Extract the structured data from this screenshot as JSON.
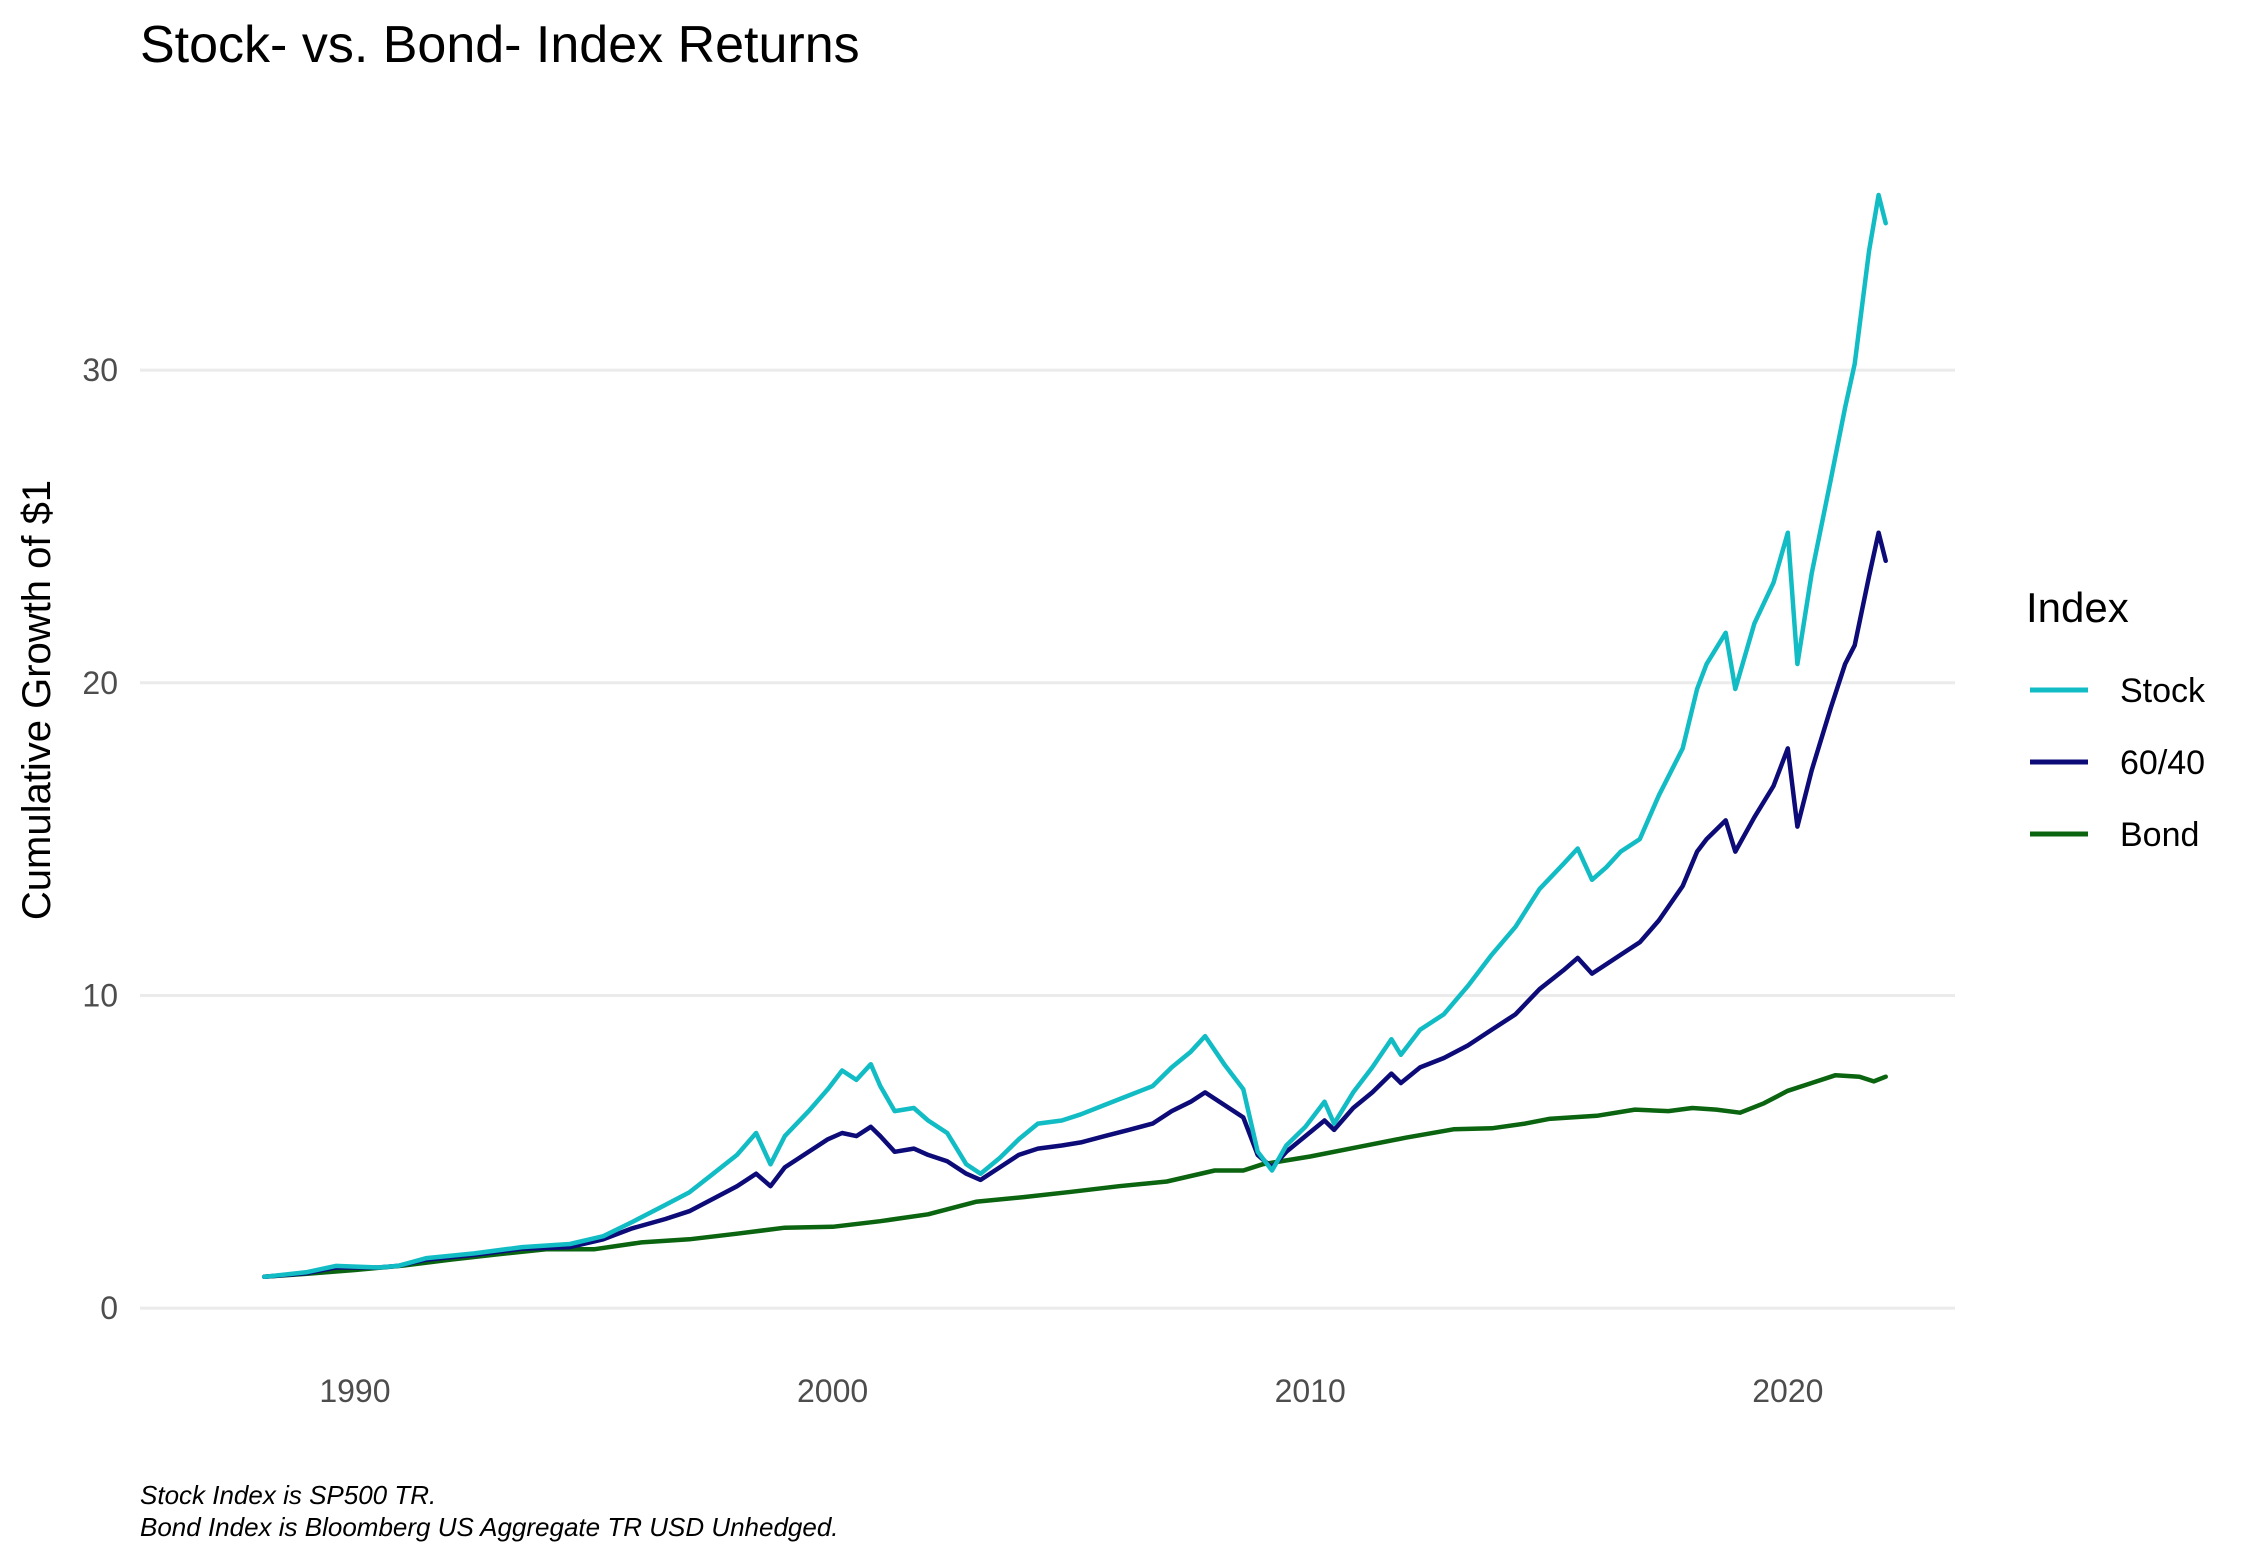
{
  "chart_data": {
    "type": "line",
    "title": "Stock- vs. Bond- Index Returns",
    "xlabel": "",
    "ylabel": "Cumulative Growth of $1",
    "xlim": [
      1985.5,
      2023.5
    ],
    "ylim": [
      -1.5,
      38
    ],
    "x_ticks": [
      1990,
      2000,
      2010,
      2020
    ],
    "x_tick_labels": [
      "1990",
      "2000",
      "2010",
      "2020"
    ],
    "y_ticks": [
      0,
      10,
      20,
      30
    ],
    "y_tick_labels": [
      "0",
      "10",
      "20",
      "30"
    ],
    "grid": "horizontal major",
    "legend": {
      "title": "Index",
      "position": "right"
    },
    "captions": [
      "Stock Index is SP500 TR.",
      "Bond Index is Bloomberg US Aggregate TR USD Unhedged."
    ],
    "series": [
      {
        "name": "Stock",
        "color": "#12bcc4",
        "points": [
          [
            1988.1,
            1.0
          ],
          [
            1989.0,
            1.15
          ],
          [
            1989.6,
            1.35
          ],
          [
            1990.5,
            1.3
          ],
          [
            1990.9,
            1.35
          ],
          [
            1991.5,
            1.6
          ],
          [
            1992.5,
            1.75
          ],
          [
            1993.5,
            1.95
          ],
          [
            1994.5,
            2.05
          ],
          [
            1995.2,
            2.3
          ],
          [
            1995.8,
            2.75
          ],
          [
            1996.5,
            3.3
          ],
          [
            1997.0,
            3.7
          ],
          [
            1997.5,
            4.3
          ],
          [
            1998.0,
            4.9
          ],
          [
            1998.4,
            5.6
          ],
          [
            1998.7,
            4.6
          ],
          [
            1999.0,
            5.5
          ],
          [
            1999.5,
            6.3
          ],
          [
            1999.9,
            7.0
          ],
          [
            2000.2,
            7.6
          ],
          [
            2000.5,
            7.3
          ],
          [
            2000.8,
            7.8
          ],
          [
            2001.0,
            7.1
          ],
          [
            2001.3,
            6.3
          ],
          [
            2001.7,
            6.4
          ],
          [
            2002.0,
            6.0
          ],
          [
            2002.4,
            5.6
          ],
          [
            2002.8,
            4.6
          ],
          [
            2003.1,
            4.3
          ],
          [
            2003.5,
            4.8
          ],
          [
            2003.9,
            5.4
          ],
          [
            2004.3,
            5.9
          ],
          [
            2004.8,
            6.0
          ],
          [
            2005.2,
            6.2
          ],
          [
            2005.7,
            6.5
          ],
          [
            2006.2,
            6.8
          ],
          [
            2006.7,
            7.1
          ],
          [
            2007.1,
            7.7
          ],
          [
            2007.5,
            8.2
          ],
          [
            2007.8,
            8.7
          ],
          [
            2008.2,
            7.8
          ],
          [
            2008.6,
            7.0
          ],
          [
            2008.9,
            5.0
          ],
          [
            2009.2,
            4.4
          ],
          [
            2009.5,
            5.2
          ],
          [
            2009.9,
            5.8
          ],
          [
            2010.3,
            6.6
          ],
          [
            2010.5,
            5.9
          ],
          [
            2010.9,
            6.9
          ],
          [
            2011.3,
            7.7
          ],
          [
            2011.7,
            8.6
          ],
          [
            2011.9,
            8.1
          ],
          [
            2012.3,
            8.9
          ],
          [
            2012.8,
            9.4
          ],
          [
            2013.3,
            10.3
          ],
          [
            2013.8,
            11.3
          ],
          [
            2014.3,
            12.2
          ],
          [
            2014.8,
            13.4
          ],
          [
            2015.3,
            14.2
          ],
          [
            2015.6,
            14.7
          ],
          [
            2015.9,
            13.7
          ],
          [
            2016.2,
            14.1
          ],
          [
            2016.5,
            14.6
          ],
          [
            2016.9,
            15.0
          ],
          [
            2017.3,
            16.4
          ],
          [
            2017.8,
            17.9
          ],
          [
            2018.1,
            19.8
          ],
          [
            2018.3,
            20.6
          ],
          [
            2018.7,
            21.6
          ],
          [
            2018.9,
            19.8
          ],
          [
            2019.3,
            21.9
          ],
          [
            2019.7,
            23.2
          ],
          [
            2020.0,
            24.8
          ],
          [
            2020.2,
            20.6
          ],
          [
            2020.5,
            23.5
          ],
          [
            2020.9,
            26.5
          ],
          [
            2021.2,
            28.8
          ],
          [
            2021.4,
            30.2
          ],
          [
            2021.7,
            33.8
          ],
          [
            2021.9,
            35.6
          ],
          [
            2022.05,
            34.7
          ]
        ]
      },
      {
        "name": "60/40",
        "color": "#0d0b78",
        "points": [
          [
            1988.1,
            1.0
          ],
          [
            1989.0,
            1.12
          ],
          [
            1989.6,
            1.3
          ],
          [
            1990.5,
            1.3
          ],
          [
            1990.9,
            1.35
          ],
          [
            1991.5,
            1.55
          ],
          [
            1992.5,
            1.7
          ],
          [
            1993.5,
            1.9
          ],
          [
            1994.5,
            1.95
          ],
          [
            1995.2,
            2.2
          ],
          [
            1995.8,
            2.55
          ],
          [
            1996.5,
            2.85
          ],
          [
            1997.0,
            3.1
          ],
          [
            1997.5,
            3.5
          ],
          [
            1998.0,
            3.9
          ],
          [
            1998.4,
            4.3
          ],
          [
            1998.7,
            3.9
          ],
          [
            1999.0,
            4.5
          ],
          [
            1999.5,
            5.0
          ],
          [
            1999.9,
            5.4
          ],
          [
            2000.2,
            5.6
          ],
          [
            2000.5,
            5.5
          ],
          [
            2000.8,
            5.8
          ],
          [
            2001.0,
            5.5
          ],
          [
            2001.3,
            5.0
          ],
          [
            2001.7,
            5.1
          ],
          [
            2002.0,
            4.9
          ],
          [
            2002.4,
            4.7
          ],
          [
            2002.8,
            4.3
          ],
          [
            2003.1,
            4.1
          ],
          [
            2003.5,
            4.5
          ],
          [
            2003.9,
            4.9
          ],
          [
            2004.3,
            5.1
          ],
          [
            2004.8,
            5.2
          ],
          [
            2005.2,
            5.3
          ],
          [
            2005.7,
            5.5
          ],
          [
            2006.2,
            5.7
          ],
          [
            2006.7,
            5.9
          ],
          [
            2007.1,
            6.3
          ],
          [
            2007.5,
            6.6
          ],
          [
            2007.8,
            6.9
          ],
          [
            2008.2,
            6.5
          ],
          [
            2008.6,
            6.1
          ],
          [
            2008.9,
            4.9
          ],
          [
            2009.2,
            4.5
          ],
          [
            2009.5,
            5.0
          ],
          [
            2009.9,
            5.5
          ],
          [
            2010.3,
            6.0
          ],
          [
            2010.5,
            5.7
          ],
          [
            2010.9,
            6.4
          ],
          [
            2011.3,
            6.9
          ],
          [
            2011.7,
            7.5
          ],
          [
            2011.9,
            7.2
          ],
          [
            2012.3,
            7.7
          ],
          [
            2012.8,
            8.0
          ],
          [
            2013.3,
            8.4
          ],
          [
            2013.8,
            8.9
          ],
          [
            2014.3,
            9.4
          ],
          [
            2014.8,
            10.2
          ],
          [
            2015.3,
            10.8
          ],
          [
            2015.6,
            11.2
          ],
          [
            2015.9,
            10.7
          ],
          [
            2016.2,
            11.0
          ],
          [
            2016.5,
            11.3
          ],
          [
            2016.9,
            11.7
          ],
          [
            2017.3,
            12.4
          ],
          [
            2017.8,
            13.5
          ],
          [
            2018.1,
            14.6
          ],
          [
            2018.3,
            15.0
          ],
          [
            2018.7,
            15.6
          ],
          [
            2018.9,
            14.6
          ],
          [
            2019.3,
            15.7
          ],
          [
            2019.7,
            16.7
          ],
          [
            2020.0,
            17.9
          ],
          [
            2020.2,
            15.4
          ],
          [
            2020.5,
            17.2
          ],
          [
            2020.9,
            19.2
          ],
          [
            2021.2,
            20.6
          ],
          [
            2021.4,
            21.2
          ],
          [
            2021.7,
            23.4
          ],
          [
            2021.9,
            24.8
          ],
          [
            2022.05,
            23.9
          ]
        ]
      },
      {
        "name": "Bond",
        "color": "#0b6410",
        "points": [
          [
            1988.1,
            1.0
          ],
          [
            1989.0,
            1.1
          ],
          [
            1990.0,
            1.22
          ],
          [
            1991.0,
            1.36
          ],
          [
            1992.0,
            1.55
          ],
          [
            1993.0,
            1.72
          ],
          [
            1994.0,
            1.88
          ],
          [
            1995.0,
            1.88
          ],
          [
            1996.0,
            2.1
          ],
          [
            1997.0,
            2.2
          ],
          [
            1998.0,
            2.38
          ],
          [
            1999.0,
            2.57
          ],
          [
            2000.0,
            2.6
          ],
          [
            2001.0,
            2.78
          ],
          [
            2002.0,
            3.0
          ],
          [
            2003.0,
            3.4
          ],
          [
            2004.0,
            3.55
          ],
          [
            2005.0,
            3.72
          ],
          [
            2006.0,
            3.9
          ],
          [
            2007.0,
            4.05
          ],
          [
            2008.0,
            4.4
          ],
          [
            2008.6,
            4.4
          ],
          [
            2009.0,
            4.6
          ],
          [
            2010.0,
            4.85
          ],
          [
            2011.0,
            5.15
          ],
          [
            2012.0,
            5.45
          ],
          [
            2013.0,
            5.72
          ],
          [
            2013.8,
            5.75
          ],
          [
            2014.5,
            5.9
          ],
          [
            2015.0,
            6.05
          ],
          [
            2016.0,
            6.15
          ],
          [
            2016.8,
            6.35
          ],
          [
            2017.5,
            6.3
          ],
          [
            2018.0,
            6.4
          ],
          [
            2018.5,
            6.35
          ],
          [
            2019.0,
            6.25
          ],
          [
            2019.5,
            6.55
          ],
          [
            2020.0,
            6.95
          ],
          [
            2020.5,
            7.2
          ],
          [
            2021.0,
            7.45
          ],
          [
            2021.5,
            7.4
          ],
          [
            2021.8,
            7.25
          ],
          [
            2022.05,
            7.4
          ]
        ]
      }
    ]
  }
}
